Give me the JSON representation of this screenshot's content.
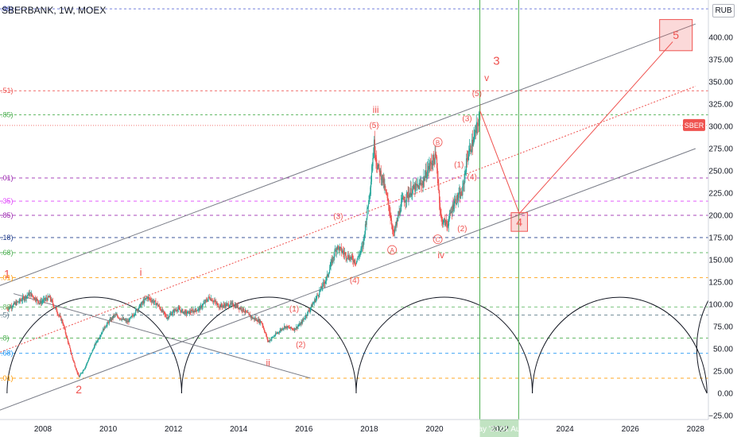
{
  "header": {
    "symbol": "SBERBANK, 1W, MOEX",
    "unit": "RUB"
  },
  "colors": {
    "candle_up": "#26a69a",
    "candle_down": "#ef5350",
    "wave": "#ef5350",
    "channel": "#787b86",
    "vline": "#4caf50",
    "date_bg": "#4caf50",
    "price_tag": "#ef5350"
  },
  "chart_data": {
    "type": "candlestick",
    "ylim": [
      -25,
      435
    ],
    "yticks": [
      -25,
      0,
      25,
      50,
      75,
      100,
      125,
      150,
      175,
      200,
      225,
      250,
      275,
      300,
      325,
      350,
      375,
      400
    ],
    "ytick_labels": [
      "−25.00",
      "0.00",
      "25.00",
      "50.00",
      "75.00",
      "100.00",
      "125.00",
      "150.00",
      "175.00",
      "200.00",
      "225.00",
      "250.00",
      "275.00",
      "300.00",
      "325.00",
      "350.00",
      "375.00",
      "400.00"
    ],
    "xticks": [
      2008,
      2010,
      2012,
      2014,
      2016,
      2018,
      2020,
      2022,
      2024,
      2026,
      2028
    ],
    "xtick_labels": [
      "2008",
      "2010",
      "2012",
      "2014",
      "2016",
      "2018",
      "2020",
      "2022",
      "2024",
      "2026",
      "2028"
    ],
    "price_tag": "SBER",
    "current_price": 301,
    "fib_levels": [
      {
        "value": 432,
        "label": ".86)",
        "color": "#5b6bd6",
        "dash": "3,3"
      },
      {
        "value": 340,
        "label": ".51)",
        "color": "#ef5350",
        "dash": "3,3"
      },
      {
        "value": 313,
        "label": ".85)",
        "color": "#4caf50",
        "dash": "3,3"
      },
      {
        "value": 242,
        "label": ".01)",
        "color": "#9c27b0",
        "dash": "4,4"
      },
      {
        "value": 216,
        "label": ".35)",
        "color": "#e040fb",
        "dash": "4,4"
      },
      {
        "value": 200,
        "label": ".85)",
        "color": "#9c27b0",
        "dash": "4,4"
      },
      {
        "value": 175,
        "label": ".18)",
        "color": "#1e3a8a",
        "dash": "4,4"
      },
      {
        "value": 158,
        "label": ".68)",
        "color": "#4caf50",
        "dash": "4,4"
      },
      {
        "value": 130,
        "label": ".01)",
        "color": "#ff9800",
        "dash": "4,4"
      },
      {
        "value": 97,
        "label": ".88",
        "color": "#66bb6a",
        "dash": "4,4"
      },
      {
        "value": 88,
        "label": ".5)",
        "color": "#607d8b",
        "dash": "4,4"
      },
      {
        "value": 62,
        "label": ".8)",
        "color": "#4caf50",
        "dash": "4,4"
      },
      {
        "value": 45,
        "label": ".68)",
        "color": "#2196f3",
        "dash": "4,4"
      },
      {
        "value": 17,
        "label": ".01)",
        "color": "#ff9800",
        "dash": "4,4"
      }
    ],
    "date_markers": [
      {
        "x": 2021.39,
        "label": "24 May '21"
      },
      {
        "x": 2022.58,
        "label": "01 Aug '22"
      }
    ],
    "anchors": [
      [
        2006.9,
        95
      ],
      [
        2007.3,
        104
      ],
      [
        2007.6,
        112
      ],
      [
        2007.9,
        102
      ],
      [
        2008.2,
        108
      ],
      [
        2008.6,
        80
      ],
      [
        2008.9,
        40
      ],
      [
        2009.1,
        18
      ],
      [
        2009.3,
        30
      ],
      [
        2009.6,
        55
      ],
      [
        2009.9,
        75
      ],
      [
        2010.2,
        88
      ],
      [
        2010.6,
        80
      ],
      [
        2010.9,
        95
      ],
      [
        2011.2,
        108
      ],
      [
        2011.5,
        100
      ],
      [
        2011.8,
        85
      ],
      [
        2012.1,
        95
      ],
      [
        2012.4,
        90
      ],
      [
        2012.8,
        95
      ],
      [
        2013.1,
        108
      ],
      [
        2013.4,
        98
      ],
      [
        2013.8,
        100
      ],
      [
        2014.1,
        95
      ],
      [
        2014.4,
        85
      ],
      [
        2014.7,
        80
      ],
      [
        2014.9,
        58
      ],
      [
        2015.1,
        65
      ],
      [
        2015.4,
        75
      ],
      [
        2015.7,
        72
      ],
      [
        2015.9,
        78
      ],
      [
        2016.3,
        102
      ],
      [
        2016.7,
        130
      ],
      [
        2017.0,
        165
      ],
      [
        2017.3,
        155
      ],
      [
        2017.6,
        148
      ],
      [
        2017.8,
        165
      ],
      [
        2018.0,
        222
      ],
      [
        2018.15,
        280
      ],
      [
        2018.25,
        255
      ],
      [
        2018.4,
        242
      ],
      [
        2018.6,
        210
      ],
      [
        2018.75,
        178
      ],
      [
        2019.0,
        215
      ],
      [
        2019.3,
        228
      ],
      [
        2019.6,
        235
      ],
      [
        2019.9,
        260
      ],
      [
        2020.05,
        265
      ],
      [
        2020.2,
        195
      ],
      [
        2020.4,
        190
      ],
      [
        2020.6,
        215
      ],
      [
        2020.85,
        225
      ],
      [
        2021.0,
        265
      ],
      [
        2021.2,
        285
      ],
      [
        2021.4,
        313
      ]
    ],
    "arcs": [
      2006.9,
      2012.25,
      2017.6,
      2023.0,
      2028.35
    ],
    "arc_top": 108,
    "channel": {
      "upper": [
        [
          2006.6,
          120
        ],
        [
          2028.0,
          415
        ]
      ],
      "lower": [
        [
          2006.6,
          -20
        ],
        [
          2028.0,
          275
        ]
      ],
      "mid": [
        [
          2006.6,
          45
        ],
        [
          2028.0,
          345
        ]
      ]
    },
    "down_trend": [
      [
        2007.1,
        112
      ],
      [
        2016.2,
        17
      ]
    ],
    "projection": [
      [
        2021.4,
        317
      ],
      [
        2022.6,
        202
      ],
      [
        2027.3,
        395
      ]
    ],
    "boxes": [
      {
        "x0": 2022.35,
        "x1": 2022.85,
        "y0": 182,
        "y1": 203,
        "label": "4"
      },
      {
        "x0": 2026.9,
        "x1": 2027.9,
        "y0": 385,
        "y1": 420,
        "label": "5"
      }
    ],
    "wave_labels": [
      {
        "x": 2006.9,
        "y": 130,
        "text": "1",
        "size": 14
      },
      {
        "x": 2009.1,
        "y": 0,
        "text": "2",
        "size": 14
      },
      {
        "x": 2011.0,
        "y": 132,
        "text": "i",
        "size": 13
      },
      {
        "x": 2014.9,
        "y": 31,
        "text": "ii",
        "size": 12
      },
      {
        "x": 2018.2,
        "y": 315,
        "text": "iii",
        "size": 12
      },
      {
        "x": 2020.2,
        "y": 152,
        "text": "iv",
        "size": 12
      },
      {
        "x": 2021.6,
        "y": 351,
        "text": "v",
        "size": 12
      },
      {
        "x": 2021.9,
        "y": 369,
        "text": "3",
        "size": 15
      },
      {
        "x": 2015.7,
        "y": 92,
        "text": "(1)",
        "size": 10
      },
      {
        "x": 2015.9,
        "y": 52,
        "text": "(2)",
        "size": 10
      },
      {
        "x": 2017.05,
        "y": 196,
        "text": "(3)",
        "size": 10
      },
      {
        "x": 2017.55,
        "y": 124,
        "text": "(4)",
        "size": 10
      },
      {
        "x": 2018.15,
        "y": 298,
        "text": "(5)",
        "size": 10
      },
      {
        "x": 2020.75,
        "y": 254,
        "text": "(1)",
        "size": 10
      },
      {
        "x": 2020.85,
        "y": 182,
        "text": "(2)",
        "size": 10
      },
      {
        "x": 2021.0,
        "y": 306,
        "text": "(3)",
        "size": 10
      },
      {
        "x": 2021.15,
        "y": 240,
        "text": "(4)",
        "size": 10
      },
      {
        "x": 2021.3,
        "y": 334,
        "text": "(5)",
        "size": 10
      },
      {
        "x": 2018.7,
        "y": 158,
        "text": "A",
        "size": 10,
        "circle": true
      },
      {
        "x": 2020.1,
        "y": 279,
        "text": "B",
        "size": 10,
        "circle": true
      },
      {
        "x": 2020.1,
        "y": 170,
        "text": "C",
        "size": 10,
        "circle": true
      }
    ]
  }
}
